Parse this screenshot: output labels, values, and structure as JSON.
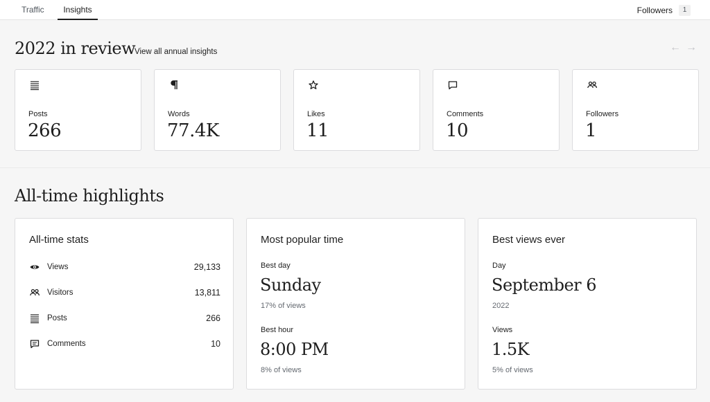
{
  "nav": {
    "tabs": [
      {
        "label": "Traffic"
      },
      {
        "label": "Insights"
      }
    ],
    "followers_label": "Followers",
    "followers_count": "1"
  },
  "year_review": {
    "title": "2022 in review",
    "link": "View all annual insights",
    "prev_icon": "arrow-left-icon",
    "next_icon": "arrow-right-icon",
    "cards": [
      {
        "icon": "posts-list-icon",
        "label": "Posts",
        "value": "266"
      },
      {
        "icon": "pilcrow-icon",
        "label": "Words",
        "value": "77.4K"
      },
      {
        "icon": "star-icon",
        "label": "Likes",
        "value": "11"
      },
      {
        "icon": "comment-icon",
        "label": "Comments",
        "value": "10"
      },
      {
        "icon": "people-icon",
        "label": "Followers",
        "value": "1"
      }
    ]
  },
  "highlights": {
    "title": "All-time highlights",
    "all_time_stats": {
      "title": "All-time stats",
      "rows": [
        {
          "icon": "eye-icon",
          "label": "Views",
          "value": "29,133"
        },
        {
          "icon": "people-icon",
          "label": "Visitors",
          "value": "13,811"
        },
        {
          "icon": "posts-list-icon",
          "label": "Posts",
          "value": "266"
        },
        {
          "icon": "comment-icon",
          "label": "Comments",
          "value": "10"
        }
      ]
    },
    "popular_time": {
      "title": "Most popular time",
      "best_day_label": "Best day",
      "best_day": "Sunday",
      "best_day_sub": "17% of views",
      "best_hour_label": "Best hour",
      "best_hour": "8:00 PM",
      "best_hour_sub": "8% of views"
    },
    "best_views": {
      "title": "Best views ever",
      "day_label": "Day",
      "day": "September 6",
      "day_sub": "2022",
      "views_label": "Views",
      "views": "1.5K",
      "views_sub": "5% of views"
    }
  }
}
